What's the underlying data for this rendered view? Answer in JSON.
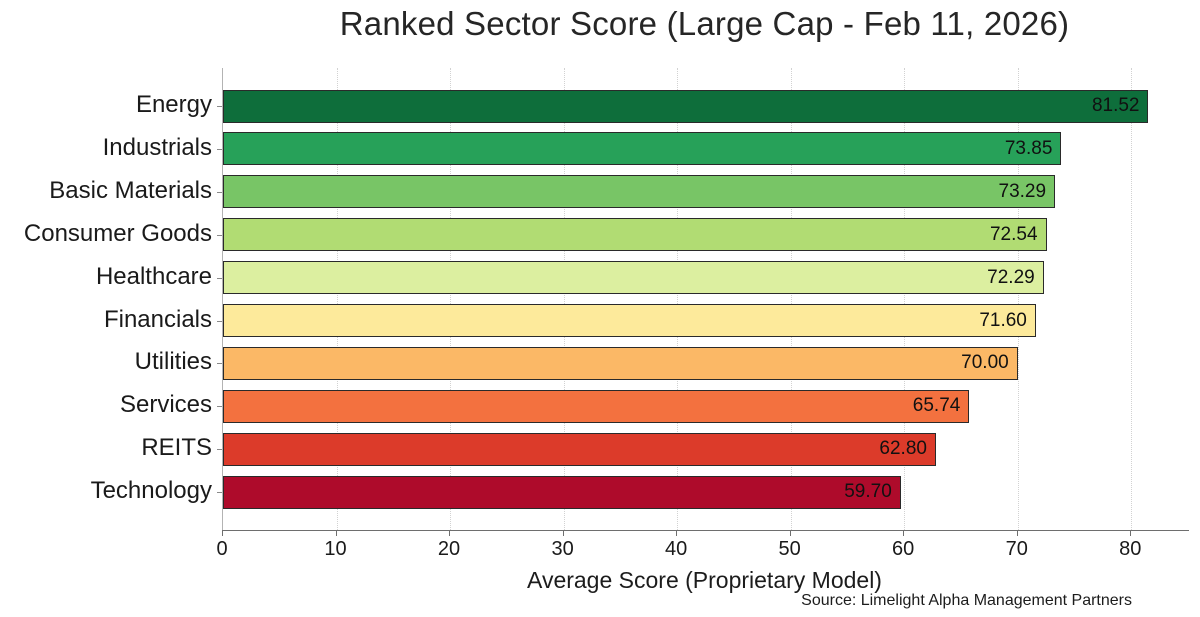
{
  "chart_data": {
    "type": "bar",
    "orientation": "horizontal",
    "title": "Ranked Sector Score (Large Cap - Feb 11, 2026)",
    "xlabel": "Average Score (Proprietary Model)",
    "ylabel": "",
    "categories": [
      "Energy",
      "Industrials",
      "Basic Materials",
      "Consumer Goods",
      "Healthcare",
      "Financials",
      "Utilities",
      "Services",
      "REITS",
      "Technology"
    ],
    "values": [
      81.52,
      73.85,
      73.29,
      72.54,
      72.29,
      71.6,
      70.0,
      65.74,
      62.8,
      59.7
    ],
    "value_labels": [
      "81.52",
      "73.85",
      "73.29",
      "72.54",
      "72.29",
      "71.60",
      "70.00",
      "65.74",
      "62.80",
      "59.70"
    ],
    "bar_colors": [
      "#0e6e3b",
      "#27a159",
      "#78c566",
      "#b1dc73",
      "#dcefa0",
      "#fdea9b",
      "#fbb866",
      "#f3713f",
      "#dc3b2a",
      "#ae0b2b"
    ],
    "xlim": [
      0,
      85
    ],
    "xticks": [
      0,
      10,
      20,
      30,
      40,
      50,
      60,
      70,
      80
    ],
    "grid": "vertical-dotted",
    "legend": "none",
    "annotations": [
      "Source: Limelight Alpha Management Partners"
    ]
  }
}
